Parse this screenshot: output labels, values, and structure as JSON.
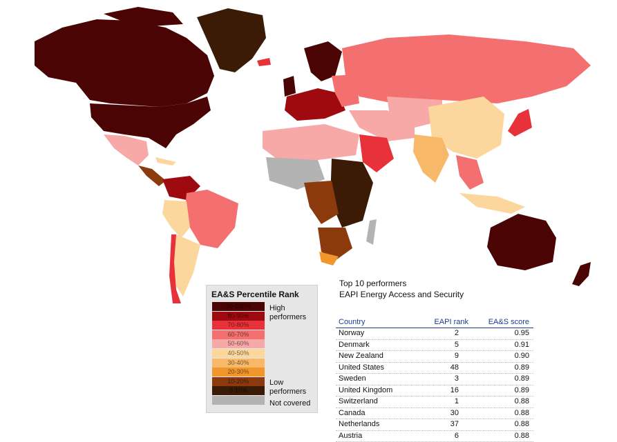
{
  "legend": {
    "title": "EA&S Percentile Rank",
    "bins": [
      {
        "label": "90-100%",
        "color": "#4a0404"
      },
      {
        "label": "80-90%",
        "color": "#9e0a10"
      },
      {
        "label": "70-80%",
        "color": "#e8323a"
      },
      {
        "label": "60-70%",
        "color": "#f47070"
      },
      {
        "label": "50-60%",
        "color": "#f6a9a6"
      },
      {
        "label": "40-50%",
        "color": "#fbd79e"
      },
      {
        "label": "30-40%",
        "color": "#f8b869"
      },
      {
        "label": "20-30%",
        "color": "#f2962b"
      },
      {
        "label": "10-20%",
        "color": "#8a3a0c"
      },
      {
        "label": "0-10%",
        "color": "#3b1a06"
      },
      {
        "label": "",
        "color": "#b3b3b3"
      }
    ],
    "high_label_1": "High",
    "high_label_2": "performers",
    "low_label_1": "Low",
    "low_label_2": "performers",
    "not_covered_label": "Not covered"
  },
  "top10": {
    "title_1": "Top 10 performers",
    "title_2": "EAPI Energy Access and Security",
    "headers": {
      "country": "Country",
      "rank": "EAPI rank",
      "score": "EA&S score"
    },
    "rows": [
      {
        "country": "Norway",
        "rank": "2",
        "score": "0.95"
      },
      {
        "country": "Denmark",
        "rank": "5",
        "score": "0.91"
      },
      {
        "country": "New Zealand",
        "rank": "9",
        "score": "0.90"
      },
      {
        "country": "United States",
        "rank": "48",
        "score": "0.89"
      },
      {
        "country": "Sweden",
        "rank": "3",
        "score": "0.89"
      },
      {
        "country": "United Kingdom",
        "rank": "16",
        "score": "0.89"
      },
      {
        "country": "Switzerland",
        "rank": "1",
        "score": "0.88"
      },
      {
        "country": "Canada",
        "rank": "30",
        "score": "0.88"
      },
      {
        "country": "Netherlands",
        "rank": "37",
        "score": "0.88"
      },
      {
        "country": "Austria",
        "rank": "6",
        "score": "0.88"
      }
    ]
  },
  "map_colors": {
    "top": "#4a0404",
    "second": "#9e0a10",
    "third": "#e8323a",
    "fourth": "#f47070",
    "fifth": "#f6a9a6",
    "sixth": "#fbd79e",
    "seventh": "#f8b869",
    "eighth": "#f2962b",
    "ninth": "#8a3a0c",
    "bottom": "#3b1a06",
    "none": "#b3b3b3"
  }
}
